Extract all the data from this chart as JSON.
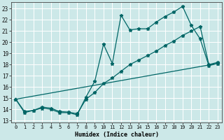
{
  "xlabel": "Humidex (Indice chaleur)",
  "bg_color": "#cce8e8",
  "grid_color": "#ffffff",
  "line_color": "#006666",
  "xlim": [
    -0.5,
    23.5
  ],
  "ylim": [
    12.8,
    23.6
  ],
  "yticks": [
    13,
    14,
    15,
    16,
    17,
    18,
    19,
    20,
    21,
    22,
    23
  ],
  "xticks": [
    0,
    1,
    2,
    3,
    4,
    5,
    6,
    7,
    8,
    9,
    10,
    11,
    12,
    13,
    14,
    15,
    16,
    17,
    18,
    19,
    20,
    21,
    22,
    23
  ],
  "line1_x": [
    0,
    1,
    2,
    3,
    4,
    5,
    6,
    7,
    8,
    9,
    10,
    11,
    12,
    13,
    14,
    15,
    16,
    17,
    18,
    19,
    20,
    21,
    22,
    23
  ],
  "line1_y": [
    14.9,
    13.7,
    13.9,
    14.1,
    14.0,
    13.7,
    13.7,
    13.5,
    15.1,
    16.5,
    19.8,
    18.1,
    22.4,
    21.1,
    21.2,
    21.2,
    21.8,
    22.3,
    22.7,
    23.2,
    21.5,
    20.3,
    17.9,
    18.1
  ],
  "line2_x": [
    0,
    23
  ],
  "line2_y": [
    14.9,
    18.1
  ],
  "line3_x": [
    0,
    1,
    2,
    3,
    4,
    5,
    6,
    7,
    8,
    9,
    10,
    11,
    12,
    13,
    14,
    15,
    16,
    17,
    18,
    19,
    20,
    21,
    22,
    23
  ],
  "line3_y": [
    14.9,
    13.8,
    13.9,
    14.2,
    14.1,
    13.8,
    13.75,
    13.6,
    14.9,
    15.5,
    16.3,
    16.8,
    17.4,
    18.0,
    18.4,
    18.8,
    19.2,
    19.7,
    20.1,
    20.6,
    21.0,
    21.4,
    18.0,
    18.2
  ]
}
